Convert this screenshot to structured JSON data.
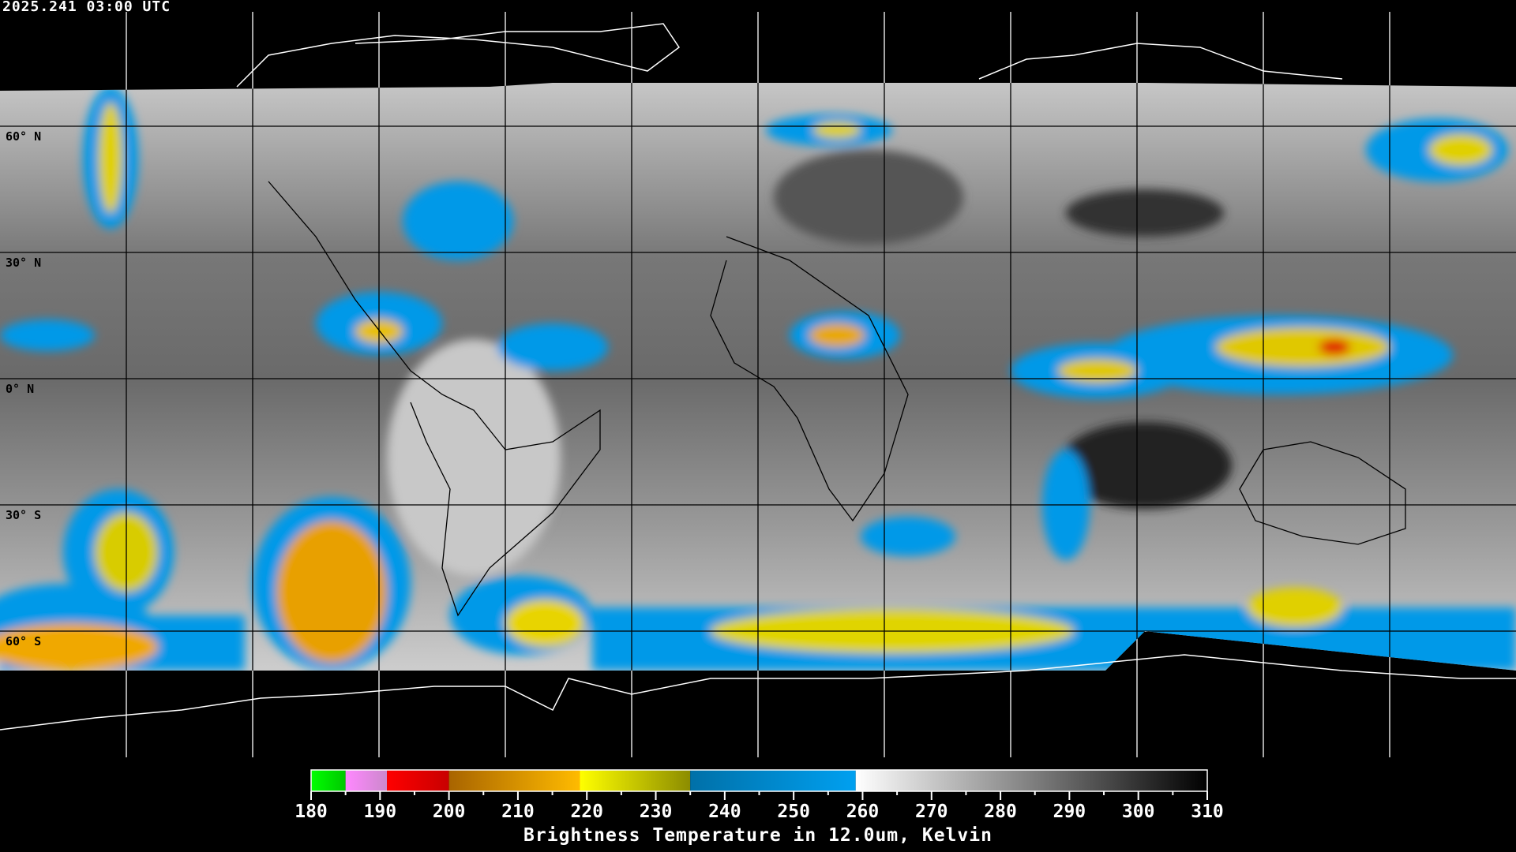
{
  "header": {
    "timestamp": "2025.241 03:00 UTC"
  },
  "map": {
    "projection": "equirectangular",
    "lon_range": [
      -180,
      180
    ],
    "lat_range": [
      -90,
      90
    ],
    "grid_spacing_deg": 30,
    "lat_labels": [
      "60° N",
      "30° N",
      "0° N",
      "30° S",
      "60° S"
    ],
    "lat_label_values": [
      60,
      30,
      0,
      -30,
      -60
    ]
  },
  "colorbar": {
    "title": "Brightness Temperature in 12.0um, Kelvin",
    "range": [
      180,
      310
    ],
    "tick_labels": [
      "180",
      "190",
      "200",
      "210",
      "220",
      "230",
      "240",
      "250",
      "260",
      "270",
      "280",
      "290",
      "300",
      "310"
    ],
    "segments": [
      {
        "from": 180,
        "to": 185,
        "colors": [
          "#00ff00",
          "#00c800"
        ]
      },
      {
        "from": 185,
        "to": 191,
        "colors": [
          "#ff88ff",
          "#cc88cc"
        ]
      },
      {
        "from": 191,
        "to": 200,
        "colors": [
          "#ff0000",
          "#c80000"
        ]
      },
      {
        "from": 200,
        "to": 219,
        "colors": [
          "#a86400",
          "#ffbb00"
        ]
      },
      {
        "from": 219,
        "to": 235,
        "colors": [
          "#ffff00",
          "#8c8c00"
        ]
      },
      {
        "from": 235,
        "to": 259,
        "colors": [
          "#0070a8",
          "#00a0f0"
        ]
      },
      {
        "from": 259,
        "to": 310,
        "colors": [
          "#ffffff",
          "#000000"
        ]
      }
    ]
  }
}
